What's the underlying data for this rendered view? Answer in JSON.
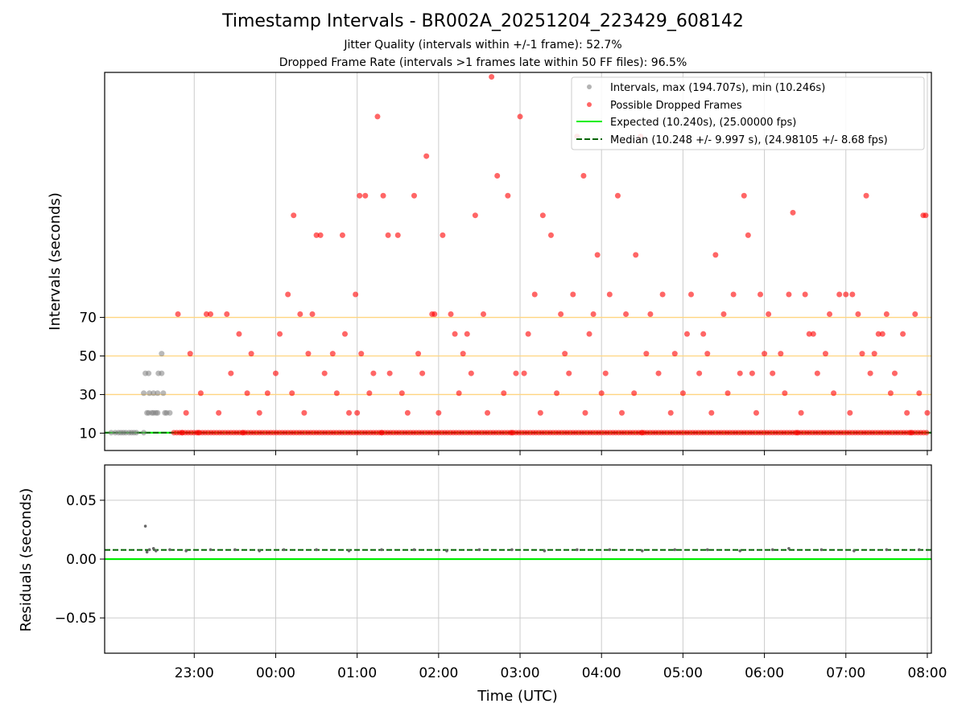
{
  "chart_data": [
    {
      "type": "scatter",
      "title": "Timestamp Intervals - BR002A_20251204_223429_608142",
      "subtitle_1": "Jitter Quality (intervals within +/-1 frame): 52.7%",
      "subtitle_2": "Dropped Frame Rate (intervals >1 frames late within 50 FF files): 96.5%",
      "xlabel": "",
      "ylabel": "Intervals (seconds)",
      "x_unit": "hours since 00:00 UTC",
      "xlim": [
        -2.1,
        8.05
      ],
      "ylim": [
        1,
        197
      ],
      "yticks": [
        10,
        30,
        50,
        70
      ],
      "ytick_labels": [
        "10",
        "30",
        "50",
        "70"
      ],
      "reference_lines": [
        30,
        50,
        70
      ],
      "reference_line_color": "#ffd580",
      "expected_value": 10.24,
      "median_value": 10.248,
      "legend_position": "top-right",
      "legend": [
        "Intervals, max (194.707s), min (10.246s)",
        "Possible Dropped Frames",
        "Expected (10.240s), (25.00000 fps)",
        "Median (10.248 +/- 9.997 s), (24.98105 +/- 8.68 fps)"
      ],
      "series": [
        {
          "name": "Intervals",
          "color": "#808080",
          "points": [
            [
              -2.02,
              10.25
            ],
            [
              -1.97,
              10.25
            ],
            [
              -1.93,
              10.25
            ],
            [
              -1.9,
              10.25
            ],
            [
              -1.87,
              10.25
            ],
            [
              -1.84,
              10.25
            ],
            [
              -1.8,
              10.25
            ],
            [
              -1.77,
              10.25
            ],
            [
              -1.74,
              10.25
            ],
            [
              -1.71,
              10.25
            ],
            [
              -1.62,
              10.25
            ],
            [
              -1.58,
              20.5
            ],
            [
              -1.56,
              20.5
            ],
            [
              -1.52,
              20.5
            ],
            [
              -1.5,
              20.5
            ],
            [
              -1.47,
              20.5
            ],
            [
              -1.45,
              20.5
            ],
            [
              -1.36,
              20.5
            ],
            [
              -1.34,
              20.5
            ],
            [
              -1.3,
              20.5
            ],
            [
              -1.62,
              30.7
            ],
            [
              -1.55,
              30.7
            ],
            [
              -1.5,
              30.7
            ],
            [
              -1.45,
              30.7
            ],
            [
              -1.38,
              30.7
            ],
            [
              -1.6,
              41
            ],
            [
              -1.56,
              41
            ],
            [
              -1.44,
              41
            ],
            [
              -1.4,
              41
            ],
            [
              -1.4,
              51.2
            ]
          ]
        },
        {
          "name": "Possible Dropped Frames",
          "color": "#ff0000",
          "points": [
            [
              -1.2,
              71.7
            ],
            [
              -1.05,
              51.2
            ],
            [
              -0.85,
              71.7
            ],
            [
              -0.8,
              71.7
            ],
            [
              -0.6,
              71.7
            ],
            [
              -0.45,
              61.4
            ],
            [
              -0.3,
              51.2
            ],
            [
              -0.1,
              30.7
            ],
            [
              0.15,
              81.9
            ],
            [
              0.22,
              122.9
            ],
            [
              0.45,
              71.7
            ],
            [
              0.5,
              112.6
            ],
            [
              0.55,
              112.6
            ],
            [
              0.7,
              51.2
            ],
            [
              0.82,
              112.6
            ],
            [
              0.98,
              81.9
            ],
            [
              1.03,
              133.1
            ],
            [
              1.1,
              133.1
            ],
            [
              1.2,
              41
            ],
            [
              1.25,
              174.1
            ],
            [
              1.32,
              133.1
            ],
            [
              1.38,
              112.6
            ],
            [
              1.5,
              112.6
            ],
            [
              1.62,
              20.5
            ],
            [
              1.7,
              133.1
            ],
            [
              1.85,
              153.6
            ],
            [
              1.92,
              71.7
            ],
            [
              2.05,
              112.6
            ],
            [
              2.15,
              71.7
            ],
            [
              2.35,
              61.4
            ],
            [
              2.45,
              122.9
            ],
            [
              2.55,
              71.7
            ],
            [
              2.65,
              194.7
            ],
            [
              2.72,
              143.4
            ],
            [
              2.85,
              133.1
            ],
            [
              3,
              174.1
            ],
            [
              3.1,
              61.4
            ],
            [
              3.18,
              81.9
            ],
            [
              3.28,
              122.9
            ],
            [
              3.38,
              112.6
            ],
            [
              3.5,
              71.7
            ],
            [
              3.65,
              81.9
            ],
            [
              3.7,
              163.8
            ],
            [
              3.78,
              143.4
            ],
            [
              3.9,
              71.7
            ],
            [
              3.95,
              102.4
            ],
            [
              4.1,
              81.9
            ],
            [
              4.2,
              133.1
            ],
            [
              4.3,
              71.7
            ],
            [
              4.42,
              102.4
            ],
            [
              4.48,
              163.8
            ],
            [
              4.6,
              71.7
            ],
            [
              4.75,
              81.9
            ],
            [
              4.9,
              51.2
            ],
            [
              5.1,
              81.9
            ],
            [
              5.25,
              61.4
            ],
            [
              5.4,
              102.4
            ],
            [
              5.5,
              71.7
            ],
            [
              5.62,
              81.9
            ],
            [
              5.75,
              133.1
            ],
            [
              5.8,
              112.6
            ],
            [
              5.95,
              81.9
            ],
            [
              6.05,
              71.7
            ],
            [
              6.2,
              51.2
            ],
            [
              6.3,
              81.9
            ],
            [
              6.35,
              124.3
            ],
            [
              6.5,
              81.9
            ],
            [
              6.6,
              61.4
            ],
            [
              6.8,
              71.7
            ],
            [
              6.92,
              81.9
            ],
            [
              7.0,
              81.9
            ],
            [
              7.08,
              81.9
            ],
            [
              7.15,
              71.7
            ],
            [
              7.25,
              133.1
            ],
            [
              7.35,
              51.2
            ],
            [
              7.45,
              61.4
            ],
            [
              7.5,
              71.7
            ],
            [
              7.6,
              41
            ],
            [
              7.7,
              61.4
            ],
            [
              7.85,
              71.7
            ],
            [
              7.95,
              122.9
            ],
            [
              7.98,
              122.9
            ],
            [
              -1.15,
              10.25
            ],
            [
              -1.1,
              20.5
            ],
            [
              -0.95,
              10.25
            ],
            [
              -0.92,
              30.7
            ],
            [
              -0.7,
              20.5
            ],
            [
              -0.55,
              41
            ],
            [
              -0.4,
              10.25
            ],
            [
              -0.35,
              30.7
            ],
            [
              -0.2,
              20.5
            ],
            [
              0.0,
              41
            ],
            [
              0.2,
              30.7
            ],
            [
              0.35,
              20.5
            ],
            [
              0.6,
              41
            ],
            [
              0.75,
              30.7
            ],
            [
              0.9,
              20.5
            ],
            [
              1.15,
              30.7
            ],
            [
              1.4,
              41
            ],
            [
              1.55,
              30.7
            ],
            [
              1.8,
              41
            ],
            [
              2.0,
              20.5
            ],
            [
              2.25,
              30.7
            ],
            [
              2.4,
              41
            ],
            [
              2.6,
              20.5
            ],
            [
              2.8,
              30.7
            ],
            [
              3.05,
              41
            ],
            [
              3.25,
              20.5
            ],
            [
              3.45,
              30.7
            ],
            [
              3.6,
              41
            ],
            [
              3.8,
              20.5
            ],
            [
              4.0,
              30.7
            ],
            [
              4.25,
              20.5
            ],
            [
              4.4,
              30.7
            ],
            [
              4.7,
              41
            ],
            [
              4.85,
              20.5
            ],
            [
              5.0,
              30.7
            ],
            [
              5.2,
              41
            ],
            [
              5.35,
              20.5
            ],
            [
              5.55,
              30.7
            ],
            [
              5.7,
              41
            ],
            [
              5.9,
              20.5
            ],
            [
              6.1,
              41
            ],
            [
              6.25,
              30.7
            ],
            [
              6.45,
              20.5
            ],
            [
              6.65,
              41
            ],
            [
              6.85,
              30.7
            ],
            [
              7.05,
              20.5
            ],
            [
              7.3,
              41
            ],
            [
              7.55,
              30.7
            ],
            [
              7.75,
              20.5
            ],
            [
              7.9,
              30.7
            ],
            [
              8.0,
              20.5
            ],
            [
              0.4,
              51.2
            ],
            [
              1.05,
              51.2
            ],
            [
              1.75,
              51.2
            ],
            [
              2.3,
              51.2
            ],
            [
              3.55,
              51.2
            ],
            [
              4.55,
              51.2
            ],
            [
              5.3,
              51.2
            ],
            [
              6.0,
              51.2
            ],
            [
              6.75,
              51.2
            ],
            [
              7.2,
              51.2
            ],
            [
              0.05,
              61.4
            ],
            [
              0.85,
              61.4
            ],
            [
              2.2,
              61.4
            ],
            [
              3.85,
              61.4
            ],
            [
              5.05,
              61.4
            ],
            [
              6.55,
              61.4
            ],
            [
              7.4,
              61.4
            ],
            [
              0.3,
              71.7
            ],
            [
              1.95,
              71.7
            ],
            [
              2.95,
              41
            ],
            [
              4.05,
              41
            ],
            [
              5.85,
              41
            ],
            [
              1.0,
              20.5
            ],
            [
              1.3,
              10.25
            ],
            [
              2.9,
              10.25
            ],
            [
              4.5,
              10.25
            ],
            [
              6.4,
              10.25
            ],
            [
              7.8,
              10.25
            ]
          ]
        }
      ]
    },
    {
      "type": "scatter",
      "xlabel": "Time (UTC)",
      "ylabel": "Residuals (seconds)",
      "x_unit": "hours since 00:00 UTC",
      "xlim": [
        -2.1,
        8.05
      ],
      "ylim": [
        -0.08,
        0.08
      ],
      "yticks": [
        -0.05,
        0.0,
        0.05
      ],
      "ytick_labels": [
        "−0.05",
        "0.00",
        "0.05"
      ],
      "xticks": [
        -1,
        0,
        1,
        2,
        3,
        4,
        5,
        6,
        7,
        8
      ],
      "xtick_labels": [
        "23:00",
        "00:00",
        "01:00",
        "02:00",
        "03:00",
        "04:00",
        "05:00",
        "06:00",
        "07:00",
        "08:00"
      ],
      "expected_value": 0.0,
      "median_value": 0.0078,
      "series": [
        {
          "name": "Residuals",
          "color": "#808080",
          "points": [
            [
              -1.6,
              0.028
            ],
            [
              -1.58,
              0.006
            ],
            [
              -1.55,
              0.008
            ],
            [
              -1.5,
              0.009
            ],
            [
              -1.47,
              0.007
            ],
            [
              -1.3,
              0.008
            ],
            [
              -1.1,
              0.007
            ],
            [
              -0.8,
              0.008
            ],
            [
              -0.5,
              0.008
            ],
            [
              -0.2,
              0.007
            ],
            [
              0.1,
              0.008
            ],
            [
              0.5,
              0.008
            ],
            [
              0.9,
              0.007
            ],
            [
              1.3,
              0.008
            ],
            [
              1.7,
              0.008
            ],
            [
              2.1,
              0.007
            ],
            [
              2.5,
              0.008
            ],
            [
              2.9,
              0.008
            ],
            [
              3.3,
              0.007
            ],
            [
              3.7,
              0.008
            ],
            [
              4.1,
              0.008
            ],
            [
              4.5,
              0.007
            ],
            [
              4.9,
              0.008
            ],
            [
              5.3,
              0.008
            ],
            [
              5.7,
              0.007
            ],
            [
              6.1,
              0.008
            ],
            [
              6.3,
              0.009
            ],
            [
              6.7,
              0.008
            ],
            [
              7.1,
              0.007
            ],
            [
              7.5,
              0.008
            ],
            [
              7.9,
              0.008
            ]
          ]
        }
      ]
    }
  ]
}
